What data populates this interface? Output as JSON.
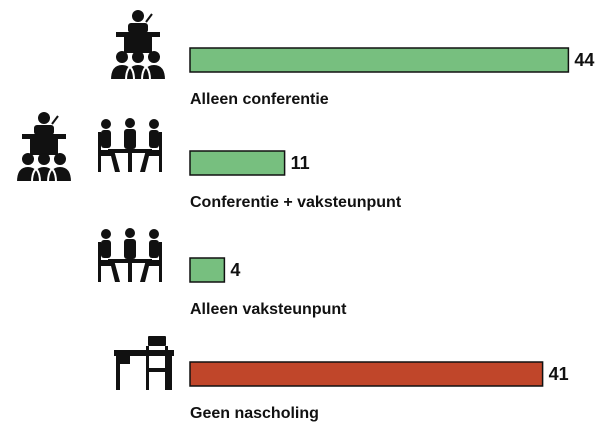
{
  "chart_data": {
    "type": "bar",
    "orientation": "horizontal",
    "categories": [
      "Alleen conferentie",
      "Conferentie + vaksteunpunt",
      "Alleen vaksteunpunt",
      "Geen nascholing"
    ],
    "values": [
      44,
      11,
      4,
      41
    ],
    "colors": [
      "#77bf7f",
      "#77bf7f",
      "#77bf7f",
      "#c0462a"
    ]
  }
}
